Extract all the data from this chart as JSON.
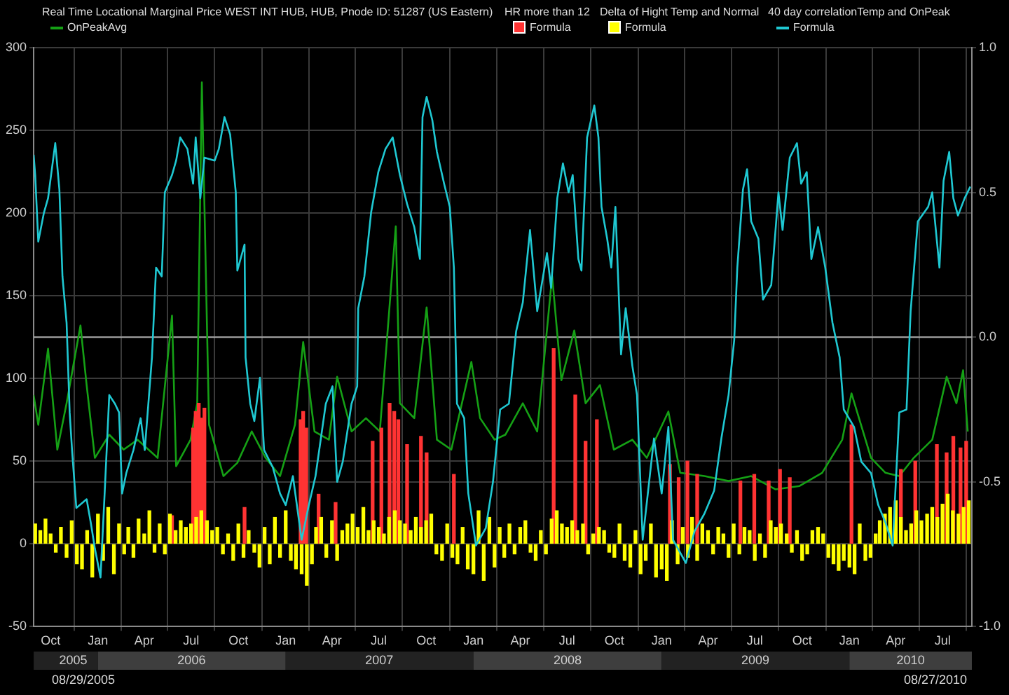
{
  "chart_data": {
    "type": "line",
    "xlim": [
      "2005-08-29",
      "2010-08-27"
    ],
    "xticks": [
      {
        "value": "2005-10-01",
        "label": "Oct"
      },
      {
        "value": "2006-01-01",
        "label": "Jan"
      },
      {
        "value": "2006-04-01",
        "label": "Apr"
      },
      {
        "value": "2006-07-01",
        "label": "Jul"
      },
      {
        "value": "2006-10-01",
        "label": "Oct"
      },
      {
        "value": "2007-01-01",
        "label": "Jan"
      },
      {
        "value": "2007-04-01",
        "label": "Apr"
      },
      {
        "value": "2007-07-01",
        "label": "Jul"
      },
      {
        "value": "2007-10-01",
        "label": "Oct"
      },
      {
        "value": "2008-01-01",
        "label": "Jan"
      },
      {
        "value": "2008-04-01",
        "label": "Apr"
      },
      {
        "value": "2008-07-01",
        "label": "Jul"
      },
      {
        "value": "2008-10-01",
        "label": "Oct"
      },
      {
        "value": "2009-01-01",
        "label": "Jan"
      },
      {
        "value": "2009-04-01",
        "label": "Apr"
      },
      {
        "value": "2009-07-01",
        "label": "Jul"
      },
      {
        "value": "2009-10-01",
        "label": "Oct"
      },
      {
        "value": "2010-01-01",
        "label": "Jan"
      },
      {
        "value": "2010-04-01",
        "label": "Apr"
      },
      {
        "value": "2010-07-01",
        "label": "Jul"
      }
    ],
    "x2lim": [
      "2005-08-29",
      "2010-08-27"
    ],
    "x2ticks": [
      {
        "value": "2005-11-14",
        "label": "2005"
      },
      {
        "value": "2006-07-02",
        "label": "2006"
      },
      {
        "value": "2007-07-02",
        "label": "2007"
      },
      {
        "value": "2008-07-02",
        "label": "2008"
      },
      {
        "value": "2009-07-02",
        "label": "2009"
      },
      {
        "value": "2010-04-30",
        "label": "2010"
      }
    ],
    "ylim": [
      -50,
      300
    ],
    "yticks": [
      -50,
      0,
      50,
      100,
      150,
      200,
      250,
      300
    ],
    "y2lim": [
      -1,
      1
    ],
    "y2ticks": [
      {
        "value": -1,
        "label": "-1.0"
      },
      {
        "value": -0.5,
        "label": "-0.5"
      },
      {
        "value": 0,
        "label": "0.0"
      },
      {
        "value": 0.5,
        "label": "0.5"
      },
      {
        "value": 1,
        "label": "1.0"
      }
    ],
    "grid": true,
    "legend": "top",
    "ref_lines": [
      {
        "axis": "y2",
        "value": 0,
        "color": "#a8a8a8"
      }
    ],
    "annotations": [
      "Real Time Locational Marginal Price WEST INT HUB, HUB, Pnode ID: 51287 (US Eastern)",
      "HR more than 12",
      "Delta  of Hight Temp and Normal",
      "40 day correlationTemp and OnPeak",
      "08/29/2005",
      "08/27/2010"
    ],
    "series": [
      {
        "name": "OnPeakAvg",
        "color": "#15a015",
        "x": [
          "2005-08-29",
          "2005-09-07",
          "2005-09-26",
          "2005-10-14",
          "2005-11-01",
          "2005-11-28",
          "2005-12-10",
          "2005-12-26",
          "2006-01-23",
          "2006-02-20",
          "2006-03-19",
          "2006-04-27",
          "2006-05-25",
          "2006-06-02",
          "2006-06-30",
          "2006-07-13",
          "2006-07-22",
          "2006-08-05",
          "2006-09-02",
          "2006-09-29",
          "2006-10-27",
          "2006-11-23",
          "2006-12-21",
          "2007-01-19",
          "2007-02-04",
          "2007-02-26",
          "2007-03-26",
          "2007-04-11",
          "2007-05-09",
          "2007-06-06",
          "2007-07-03",
          "2007-08-03",
          "2007-08-11",
          "2007-09-08",
          "2007-10-02",
          "2007-10-22",
          "2007-11-19",
          "2007-12-28",
          "2008-01-14",
          "2008-02-11",
          "2008-03-03",
          "2008-04-06",
          "2008-05-04",
          "2008-06-02",
          "2008-06-20",
          "2008-07-15",
          "2008-08-06",
          "2008-09-03",
          "2008-09-30",
          "2008-11-05",
          "2008-12-03",
          "2009-01-14",
          "2009-02-06",
          "2009-03-25",
          "2009-05-11",
          "2009-06-24",
          "2009-08-10",
          "2009-09-26",
          "2009-11-09",
          "2009-12-18",
          "2010-01-05",
          "2010-02-12",
          "2010-03-12",
          "2010-04-08",
          "2010-05-06",
          "2010-06-11",
          "2010-07-09",
          "2010-07-28",
          "2010-08-10",
          "2010-08-19"
        ],
        "values": [
          90,
          72,
          118,
          57,
          85,
          132,
          96,
          52,
          66,
          57,
          63,
          52,
          138,
          47,
          63,
          85,
          279,
          72,
          41,
          49,
          68,
          52,
          41,
          72,
          122,
          68,
          63,
          101,
          68,
          76,
          68,
          192,
          85,
          76,
          143,
          63,
          57,
          110,
          76,
          63,
          66,
          85,
          68,
          162,
          99,
          129,
          85,
          96,
          57,
          63,
          52,
          80,
          43,
          41,
          38,
          41,
          33,
          35,
          43,
          63,
          91,
          52,
          43,
          41,
          52,
          63,
          101,
          85,
          105,
          68
        ]
      },
      {
        "name": "Formula",
        "type": "bar",
        "color": "#ff3333",
        "x": [
          "2006-05-25",
          "2006-07-05",
          "2006-07-10",
          "2006-07-16",
          "2006-07-22",
          "2006-07-27",
          "2006-10-13",
          "2007-01-30",
          "2007-02-04",
          "2007-02-10",
          "2007-03-06",
          "2007-04-08",
          "2007-06-19",
          "2007-07-06",
          "2007-07-22",
          "2007-07-31",
          "2007-08-08",
          "2007-08-25",
          "2007-09-21",
          "2007-10-02",
          "2007-11-24",
          "2008-06-05",
          "2008-07-17",
          "2008-08-06",
          "2008-08-28",
          "2009-01-17",
          "2009-02-03",
          "2009-02-20",
          "2009-03-11",
          "2009-06-03",
          "2009-06-30",
          "2009-07-28",
          "2009-08-19",
          "2009-09-07",
          "2010-01-05",
          "2010-04-11",
          "2010-05-09",
          "2010-06-20",
          "2010-07-09",
          "2010-07-22",
          "2010-08-05",
          "2010-08-16"
        ],
        "values": [
          17,
          70,
          80,
          85,
          76,
          82,
          22,
          75,
          80,
          70,
          30,
          25,
          62,
          70,
          85,
          80,
          75,
          60,
          65,
          55,
          42,
          118,
          90,
          62,
          75,
          48,
          40,
          50,
          42,
          38,
          42,
          38,
          45,
          40,
          72,
          45,
          50,
          60,
          55,
          65,
          58,
          62
        ]
      },
      {
        "name": "Formula",
        "type": "bar",
        "color": "#ffff00",
        "x": [
          "2005-09-01",
          "2005-09-11",
          "2005-09-21",
          "2005-10-01",
          "2005-10-11",
          "2005-10-21",
          "2005-11-01",
          "2005-11-11",
          "2005-11-21",
          "2005-12-01",
          "2005-12-11",
          "2005-12-21",
          "2006-01-01",
          "2006-01-11",
          "2006-01-21",
          "2006-02-01",
          "2006-02-11",
          "2006-02-21",
          "2006-03-01",
          "2006-03-11",
          "2006-03-21",
          "2006-04-01",
          "2006-04-11",
          "2006-04-21",
          "2006-05-01",
          "2006-05-11",
          "2006-05-21",
          "2006-06-01",
          "2006-06-11",
          "2006-06-21",
          "2006-07-01",
          "2006-07-11",
          "2006-07-21",
          "2006-08-01",
          "2006-08-11",
          "2006-08-21",
          "2006-09-01",
          "2006-09-11",
          "2006-09-21",
          "2006-10-01",
          "2006-10-11",
          "2006-10-21",
          "2006-11-01",
          "2006-11-11",
          "2006-11-21",
          "2006-12-01",
          "2006-12-11",
          "2006-12-21",
          "2007-01-01",
          "2007-01-11",
          "2007-01-21",
          "2007-02-01",
          "2007-02-11",
          "2007-02-21",
          "2007-03-01",
          "2007-03-11",
          "2007-03-21",
          "2007-04-01",
          "2007-04-11",
          "2007-04-21",
          "2007-05-01",
          "2007-05-11",
          "2007-05-21",
          "2007-06-01",
          "2007-06-11",
          "2007-06-21",
          "2007-07-01",
          "2007-07-11",
          "2007-07-21",
          "2007-08-01",
          "2007-08-11",
          "2007-08-21",
          "2007-09-01",
          "2007-09-11",
          "2007-09-21",
          "2007-10-01",
          "2007-10-11",
          "2007-10-21",
          "2007-11-01",
          "2007-11-11",
          "2007-11-21",
          "2007-12-01",
          "2007-12-11",
          "2007-12-21",
          "2008-01-01",
          "2008-01-11",
          "2008-01-21",
          "2008-02-01",
          "2008-02-11",
          "2008-02-21",
          "2008-03-01",
          "2008-03-11",
          "2008-03-21",
          "2008-04-01",
          "2008-04-11",
          "2008-04-21",
          "2008-05-01",
          "2008-05-11",
          "2008-05-21",
          "2008-06-01",
          "2008-06-11",
          "2008-06-21",
          "2008-07-01",
          "2008-07-11",
          "2008-07-21",
          "2008-08-01",
          "2008-08-11",
          "2008-08-21",
          "2008-09-01",
          "2008-09-11",
          "2008-09-21",
          "2008-10-01",
          "2008-10-11",
          "2008-10-21",
          "2008-11-01",
          "2008-11-11",
          "2008-11-21",
          "2008-12-01",
          "2008-12-11",
          "2008-12-21",
          "2009-01-01",
          "2009-01-11",
          "2009-01-21",
          "2009-02-01",
          "2009-02-11",
          "2009-02-21",
          "2009-03-01",
          "2009-03-11",
          "2009-03-21",
          "2009-04-01",
          "2009-04-11",
          "2009-04-21",
          "2009-05-01",
          "2009-05-11",
          "2009-05-21",
          "2009-06-01",
          "2009-06-11",
          "2009-06-21",
          "2009-07-01",
          "2009-07-11",
          "2009-07-21",
          "2009-08-01",
          "2009-08-11",
          "2009-08-21",
          "2009-09-01",
          "2009-09-11",
          "2009-09-21",
          "2009-10-01",
          "2009-10-11",
          "2009-10-21",
          "2009-11-01",
          "2009-11-11",
          "2009-11-21",
          "2009-12-01",
          "2009-12-11",
          "2009-12-21",
          "2010-01-01",
          "2010-01-11",
          "2010-01-21",
          "2010-02-01",
          "2010-02-11",
          "2010-02-21",
          "2010-03-01",
          "2010-03-11",
          "2010-03-21",
          "2010-04-01",
          "2010-04-11",
          "2010-04-21",
          "2010-05-01",
          "2010-05-11",
          "2010-05-21",
          "2010-06-01",
          "2010-06-11",
          "2010-06-21",
          "2010-07-01",
          "2010-07-11",
          "2010-07-21",
          "2010-08-01",
          "2010-08-11",
          "2010-08-21"
        ],
        "values": [
          12,
          8,
          15,
          6,
          -5,
          10,
          -8,
          14,
          -12,
          -15,
          8,
          -20,
          18,
          -10,
          22,
          -18,
          12,
          -6,
          10,
          -8,
          15,
          6,
          20,
          -5,
          12,
          -6,
          18,
          8,
          14,
          10,
          12,
          16,
          20,
          14,
          8,
          10,
          -6,
          6,
          -10,
          12,
          -8,
          8,
          -5,
          -14,
          10,
          -12,
          16,
          -8,
          20,
          -10,
          -15,
          -18,
          -25,
          -12,
          10,
          16,
          -8,
          14,
          -10,
          8,
          12,
          18,
          10,
          22,
          8,
          14,
          10,
          6,
          16,
          20,
          14,
          12,
          8,
          16,
          10,
          14,
          18,
          -6,
          -10,
          12,
          -8,
          -12,
          10,
          -15,
          -18,
          20,
          -22,
          16,
          -14,
          10,
          -8,
          12,
          -6,
          10,
          14,
          -5,
          -10,
          8,
          -6,
          15,
          20,
          12,
          10,
          14,
          8,
          12,
          -6,
          6,
          10,
          8,
          -5,
          -8,
          12,
          -10,
          -14,
          8,
          -18,
          -10,
          12,
          -20,
          -15,
          -22,
          14,
          -12,
          10,
          -8,
          16,
          -10,
          12,
          8,
          -6,
          10,
          6,
          -8,
          12,
          -6,
          10,
          8,
          -10,
          6,
          -8,
          14,
          10,
          12,
          6,
          -5,
          8,
          -10,
          -6,
          8,
          10,
          6,
          -8,
          -12,
          -16,
          -10,
          -14,
          -18,
          12,
          -10,
          -8,
          6,
          14,
          18,
          22,
          26,
          16,
          8,
          12,
          20,
          14,
          18,
          22,
          16,
          24,
          30,
          20,
          18,
          22,
          26
        ]
      },
      {
        "name": "Formula",
        "axis": "y2",
        "color": "#1fc8d2",
        "x": [
          "2005-08-29",
          "2005-09-01",
          "2005-09-07",
          "2005-09-18",
          "2005-09-26",
          "2005-10-10",
          "2005-10-18",
          "2005-10-24",
          "2005-11-01",
          "2005-11-07",
          "2005-11-12",
          "2005-11-20",
          "2005-12-10",
          "2005-12-18",
          "2005-12-26",
          "2006-01-06",
          "2006-01-14",
          "2006-01-23",
          "2006-02-03",
          "2006-02-11",
          "2006-02-17",
          "2006-02-25",
          "2006-03-11",
          "2006-03-25",
          "2006-04-02",
          "2006-04-16",
          "2006-04-24",
          "2006-05-05",
          "2006-05-11",
          "2006-05-25",
          "2006-06-02",
          "2006-06-10",
          "2006-06-24",
          "2006-07-05",
          "2006-07-10",
          "2006-07-19",
          "2006-07-27",
          "2006-08-16",
          "2006-08-24",
          "2006-09-04",
          "2006-09-15",
          "2006-09-26",
          "2006-09-29",
          "2006-10-13",
          "2006-10-15",
          "2006-10-24",
          "2006-11-01",
          "2006-11-12",
          "2006-11-20",
          "2006-12-07",
          "2006-12-21",
          "2007-01-01",
          "2007-01-15",
          "2007-02-01",
          "2007-02-15",
          "2007-02-28",
          "2007-03-20",
          "2007-04-02",
          "2007-04-11",
          "2007-04-22",
          "2007-05-09",
          "2007-05-20",
          "2007-05-22",
          "2007-06-03",
          "2007-06-16",
          "2007-06-30",
          "2007-07-14",
          "2007-07-28",
          "2007-08-11",
          "2007-08-25",
          "2007-09-08",
          "2007-09-19",
          "2007-09-24",
          "2007-10-02",
          "2007-10-13",
          "2007-10-22",
          "2007-11-05",
          "2007-11-16",
          "2007-11-24",
          "2007-11-30",
          "2007-12-14",
          "2007-12-22",
          "2008-01-06",
          "2008-01-25",
          "2008-02-08",
          "2008-02-22",
          "2008-03-10",
          "2008-03-24",
          "2008-04-06",
          "2008-04-20",
          "2008-05-04",
          "2008-05-23",
          "2008-05-31",
          "2008-06-12",
          "2008-06-23",
          "2008-07-04",
          "2008-07-12",
          "2008-07-23",
          "2008-07-29",
          "2008-08-09",
          "2008-08-23",
          "2008-08-31",
          "2008-09-06",
          "2008-09-17",
          "2008-09-25",
          "2008-10-03",
          "2008-10-14",
          "2008-10-23",
          "2008-11-05",
          "2008-11-14",
          "2008-11-25",
          "2008-12-17",
          "2009-01-01",
          "2009-01-14",
          "2009-01-23",
          "2009-02-17",
          "2009-03-06",
          "2009-03-25",
          "2009-04-13",
          "2009-04-27",
          "2009-05-11",
          "2009-05-22",
          "2009-05-28",
          "2009-06-08",
          "2009-06-16",
          "2009-06-24",
          "2009-07-08",
          "2009-07-17",
          "2009-08-02",
          "2009-08-16",
          "2009-08-24",
          "2009-09-07",
          "2009-09-21",
          "2009-09-29",
          "2009-10-10",
          "2009-10-19",
          "2009-11-01",
          "2009-11-15",
          "2009-11-29",
          "2009-12-13",
          "2009-12-21",
          "2010-01-10",
          "2010-01-24",
          "2010-02-12",
          "2010-02-26",
          "2010-03-12",
          "2010-03-26",
          "2010-04-08",
          "2010-04-22",
          "2010-04-30",
          "2010-05-14",
          "2010-06-03",
          "2010-06-11",
          "2010-06-25",
          "2010-07-03",
          "2010-07-14",
          "2010-07-22",
          "2010-07-31",
          "2010-08-13",
          "2010-08-24"
        ],
        "values": [
          0.63,
          0.56,
          0.33,
          0.43,
          0.48,
          0.67,
          0.51,
          0.21,
          0.05,
          -0.26,
          -0.4,
          -0.59,
          -0.56,
          -0.64,
          -0.73,
          -0.83,
          -0.54,
          -0.2,
          -0.23,
          -0.26,
          -0.54,
          -0.47,
          -0.39,
          -0.28,
          -0.39,
          -0.07,
          0.24,
          0.21,
          0.5,
          0.56,
          0.61,
          0.69,
          0.65,
          0.53,
          0.69,
          0.48,
          0.62,
          0.61,
          0.65,
          0.76,
          0.7,
          0.5,
          0.23,
          0.32,
          -0.07,
          -0.23,
          -0.29,
          -0.14,
          -0.39,
          -0.45,
          -0.54,
          -0.58,
          -0.48,
          -0.7,
          -0.58,
          -0.48,
          -0.23,
          -0.17,
          -0.5,
          -0.43,
          -0.23,
          -0.17,
          0.1,
          0.21,
          0.43,
          0.57,
          0.65,
          0.69,
          0.56,
          0.46,
          0.38,
          0.27,
          0.76,
          0.83,
          0.75,
          0.64,
          0.53,
          0.45,
          0.24,
          -0.23,
          -0.28,
          -0.54,
          -0.72,
          -0.66,
          -0.5,
          -0.25,
          -0.23,
          0.02,
          0.12,
          0.37,
          0.09,
          0.29,
          0.17,
          0.48,
          0.6,
          0.5,
          0.56,
          0.27,
          0.23,
          0.69,
          0.8,
          0.69,
          0.45,
          0.34,
          0.24,
          0.45,
          -0.06,
          0.1,
          -0.1,
          -0.2,
          -0.7,
          -0.35,
          -0.54,
          -0.31,
          -0.7,
          -0.78,
          -0.67,
          -0.61,
          -0.53,
          -0.35,
          -0.2,
          -0.01,
          0.24,
          0.51,
          0.58,
          0.4,
          0.34,
          0.13,
          0.18,
          0.5,
          0.37,
          0.62,
          0.67,
          0.53,
          0.57,
          0.27,
          0.38,
          0.24,
          0.05,
          -0.07,
          -0.25,
          -0.31,
          -0.43,
          -0.47,
          -0.58,
          -0.64,
          -0.72,
          -0.26,
          -0.25,
          0.09,
          0.4,
          0.45,
          0.5,
          0.24,
          0.54,
          0.64,
          0.48,
          0.42,
          0.48,
          0.52
        ]
      }
    ]
  }
}
